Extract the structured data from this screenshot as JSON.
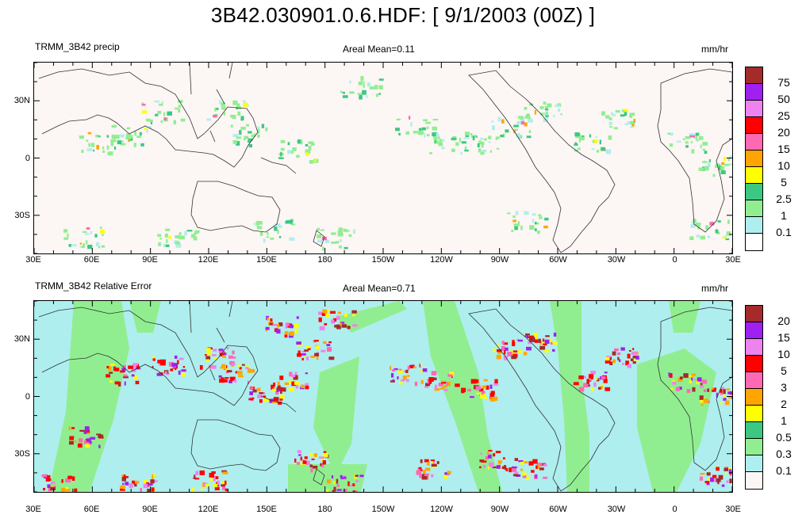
{
  "title": "3B42.030901.0.6.HDF: [ 9/1/2003 (00Z) ]",
  "lon_labels": [
    "30E",
    "60E",
    "90E",
    "120E",
    "150E",
    "180",
    "150W",
    "120W",
    "90W",
    "60W",
    "30W",
    "0",
    "30E"
  ],
  "lat_labels": [
    "30N",
    "0",
    "30S"
  ],
  "panels": [
    {
      "name": "TRMM_3B42 precip",
      "areal_mean": "Areal Mean=0.11",
      "units": "mm/hr",
      "background": "#fcf6f4",
      "legend_labels": [
        "75",
        "50",
        "25",
        "20",
        "15",
        "10",
        "5",
        "2.5",
        "1",
        "0.1"
      ],
      "legend_colors": [
        "#a52a2a",
        "#a020f0",
        "#ee82ee",
        "#ff0000",
        "#ff69b4",
        "#ffa500",
        "#ffff00",
        "#3cc882",
        "#90ee90",
        "#afeeee",
        "#ffffff"
      ]
    },
    {
      "name": "TRMM_3B42 Relative Error",
      "areal_mean": "Areal Mean=0.71",
      "units": "mm/hr",
      "background": "#aeeeee",
      "legend_labels": [
        "20",
        "15",
        "10",
        "5",
        "3",
        "2",
        "1",
        "0.5",
        "0.3",
        "0.1"
      ],
      "legend_colors": [
        "#a52a2a",
        "#a020f0",
        "#ee82ee",
        "#ff0000",
        "#ff69b4",
        "#ffa500",
        "#ffff00",
        "#3cc882",
        "#90ee90",
        "#afeeee",
        "#fcf6f4"
      ]
    }
  ]
}
